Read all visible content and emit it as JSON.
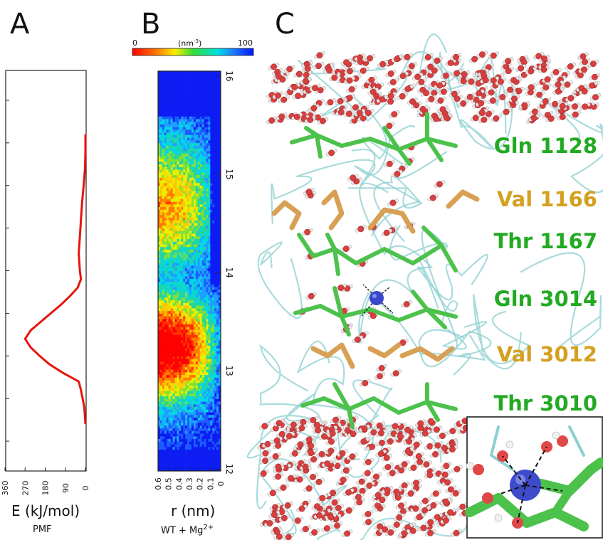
{
  "panels": {
    "a_label": "A",
    "b_label": "B",
    "c_label": "C"
  },
  "panel_a": {
    "xlabel": "E (kJ/mol)",
    "caption": "PMF",
    "line_color": "#e8140c"
  },
  "panel_b": {
    "xlabel": "r (nm)",
    "caption_main": "WT + Mg",
    "caption_sup": "2+",
    "colorbar": {
      "min_label": "0",
      "max_label": "100",
      "unit_label": "(nm",
      "unit_sup": "-3",
      "unit_close": ")"
    }
  },
  "panel_c": {
    "residues": [
      {
        "label": "Gln 1128",
        "color": "#22aa22"
      },
      {
        "label": "Val 1166",
        "color": "#d4a020"
      },
      {
        "label": "Thr 1167",
        "color": "#22aa22"
      },
      {
        "label": "Gln 3014",
        "color": "#22aa22"
      },
      {
        "label": "Val 3012",
        "color": "#d4a020"
      },
      {
        "label": "Thr 3010",
        "color": "#22aa22"
      }
    ]
  },
  "chart_data": [
    {
      "type": "line",
      "name": "panel-A-pmf",
      "xlabel": "E (kJ/mol)",
      "ylabel": "",
      "xlim": [
        360,
        0
      ],
      "ylim": [
        12,
        16
      ],
      "x_ticks": [
        360,
        270,
        180,
        90,
        0
      ],
      "y": [
        12.2,
        12.4,
        12.6,
        12.7,
        12.8,
        12.9,
        13.0,
        13.1,
        13.2,
        13.3,
        13.4,
        13.5,
        13.6,
        13.7,
        13.8,
        13.9,
        14.0,
        14.2,
        14.4,
        14.6,
        14.8,
        15.0,
        15.2,
        15.4,
        15.5,
        15.6
      ],
      "x": [
        0,
        5,
        20,
        30,
        100,
        160,
        205,
        245,
        270,
        245,
        200,
        155,
        110,
        70,
        35,
        20,
        25,
        30,
        25,
        20,
        15,
        8,
        2,
        0,
        0,
        0
      ]
    },
    {
      "type": "heatmap",
      "name": "panel-B-density",
      "xlabel": "r (nm)",
      "x_ticks": [
        0.6,
        0.5,
        0.4,
        0.3,
        0.2,
        0.1,
        0
      ],
      "xlim": [
        0.6,
        0
      ],
      "y_ticks": [
        12,
        13,
        14,
        15,
        16
      ],
      "ylim": [
        12,
        16
      ],
      "colorbar_range": [
        0,
        100
      ],
      "colorbar_unit": "nm^-3"
    }
  ]
}
